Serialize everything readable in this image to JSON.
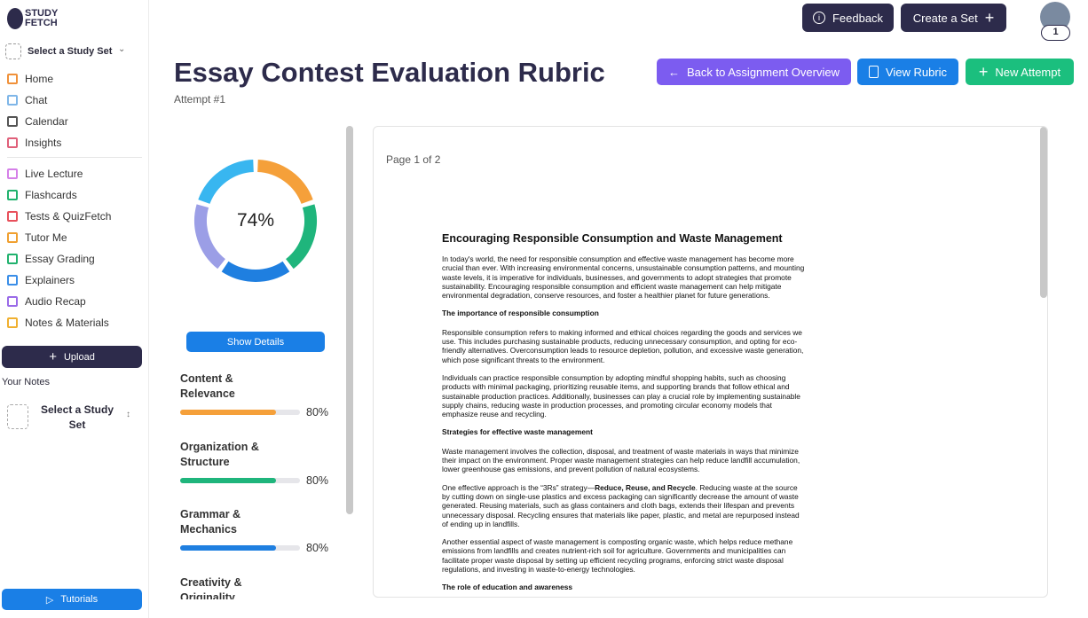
{
  "sidebar": {
    "logo": [
      "STUDY",
      "FETCH"
    ],
    "study_set_select": "Select a Study Set",
    "nav_main": [
      {
        "label": "Home",
        "color": "#f0913a"
      },
      {
        "label": "Chat",
        "color": "#7fb6e8"
      },
      {
        "label": "Calendar",
        "color": "#555"
      },
      {
        "label": "Insights",
        "color": "#e0607a"
      }
    ],
    "nav_tools": [
      {
        "label": "Live Lecture",
        "color": "#d580e8"
      },
      {
        "label": "Flashcards",
        "color": "#21b26e"
      },
      {
        "label": "Tests & QuizFetch",
        "color": "#e8505b"
      },
      {
        "label": "Tutor Me",
        "color": "#f0a030"
      },
      {
        "label": "Essay Grading",
        "color": "#21b26e"
      },
      {
        "label": "Explainers",
        "color": "#3a8ee8"
      },
      {
        "label": "Audio Recap",
        "color": "#9a6be8"
      },
      {
        "label": "Notes & Materials",
        "color": "#f0b030"
      }
    ],
    "upload": "Upload",
    "your_notes": "Your Notes",
    "notes_select": "Select a Study Set",
    "tutorials": "Tutorials"
  },
  "header": {
    "feedback": "Feedback",
    "create_set": "Create a Set",
    "badge": "1",
    "title": "Essay Contest Evaluation Rubric",
    "attempt": "Attempt #1",
    "buttons": {
      "back": "Back to Assignment Overview",
      "view_rubric": "View Rubric",
      "new_attempt": "New Attempt"
    }
  },
  "score": {
    "label": "74%",
    "donut_colors": [
      "#f5a03a",
      "#1fb57c",
      "#1f7fe0",
      "#9b9ee6",
      "#38b6f0"
    ],
    "show_details": "Show Details"
  },
  "criteria": [
    {
      "name": "Content & Relevance",
      "score": "80%",
      "color": "#f5a03a"
    },
    {
      "name": "Organization & Structure",
      "score": "80%",
      "color": "#1fb57c"
    },
    {
      "name": "Grammar & Mechanics",
      "score": "80%",
      "color": "#1f7fe0"
    },
    {
      "name": "Creativity & Originality"
    }
  ],
  "document": {
    "page": "Page 1 of 2",
    "heading": "Encouraging Responsible Consumption and Waste Management",
    "blocks": [
      {
        "type": "p",
        "text": "In today's world, the need for responsible consumption and effective waste management has become more crucial than ever. With increasing environmental concerns, unsustainable consumption patterns, and mounting waste levels, it is imperative for individuals, businesses, and governments to adopt strategies that promote sustainability. Encouraging responsible consumption and efficient waste management can help mitigate environmental degradation, conserve resources, and foster a healthier planet for future generations."
      },
      {
        "type": "h",
        "text": "The importance of responsible consumption"
      },
      {
        "type": "p",
        "text": "Responsible consumption refers to making informed and ethical choices regarding the goods and services we use. This includes purchasing sustainable products, reducing unnecessary consumption, and opting for eco-friendly alternatives. Overconsumption leads to resource depletion, pollution, and excessive waste generation, which pose significant threats to the environment."
      },
      {
        "type": "p",
        "text": "Individuals can practice responsible consumption by adopting mindful shopping habits, such as choosing products with minimal packaging, prioritizing reusable items, and supporting brands that follow ethical and sustainable production practices. Additionally, businesses can play a crucial role by implementing sustainable supply chains, reducing waste in production processes, and promoting circular economy models that emphasize reuse and recycling."
      },
      {
        "type": "h",
        "text": "Strategies for effective waste management"
      },
      {
        "type": "p",
        "text": "Waste management involves the collection, disposal, and treatment of waste materials in ways that minimize their impact on the environment. Proper waste management strategies can help reduce landfill accumulation, lower greenhouse gas emissions, and prevent pollution of natural ecosystems."
      },
      {
        "type": "p",
        "runs": [
          {
            "text": "One effective approach is the “3Rs” strategy—",
            "bold": false
          },
          {
            "text": "Reduce, Reuse, and Recycle",
            "bold": true
          },
          {
            "text": ". Reducing waste at the source by cutting down on single-use plastics and excess packaging can significantly decrease the amount of waste generated. Reusing materials, such as glass containers and cloth bags, extends their lifespan and prevents unnecessary disposal. Recycling ensures that materials like paper, plastic, and metal are repurposed instead of ending up in landfills.",
            "bold": false
          }
        ]
      },
      {
        "type": "p",
        "text": "Another essential aspect of waste management is composting organic waste, which helps reduce methane emissions from landfills and creates nutrient-rich soil for agriculture. Governments and municipalities can facilitate proper waste disposal by setting up efficient recycling programs, enforcing strict waste disposal regulations, and investing in waste-to-energy technologies."
      },
      {
        "type": "h",
        "text": "The role of education and awareness"
      }
    ]
  }
}
